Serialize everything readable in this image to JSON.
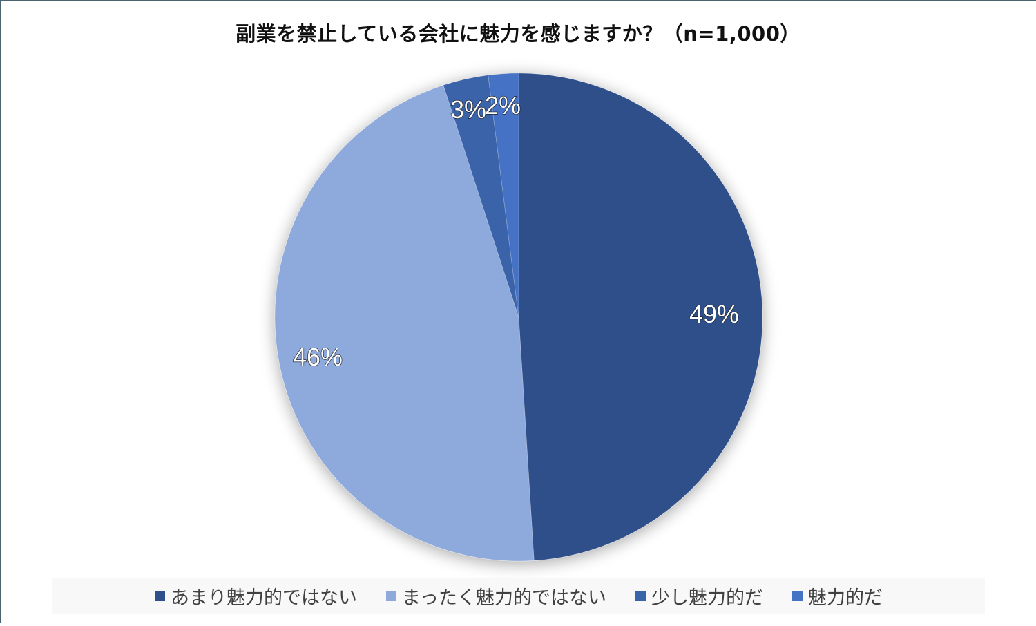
{
  "chart": {
    "title": "副業を禁止している会社に魅力を感じますか？（n=1,000）"
  },
  "legend": {
    "items": [
      {
        "label": "あまり魅力的ではない",
        "color": "#2e4f8a"
      },
      {
        "label": "まったく魅力的ではない",
        "color": "#8eaadc"
      },
      {
        "label": "少し魅力的だ",
        "color": "#3a64aa"
      },
      {
        "label": "魅力的だ",
        "color": "#4472c4"
      }
    ]
  },
  "labels": [
    "49%",
    "46%",
    "3%",
    "2%"
  ],
  "chart_data": {
    "type": "pie",
    "title": "副業を禁止している会社に魅力を感じますか？（n=1,000）",
    "categories": [
      "あまり魅力的ではない",
      "まったく魅力的ではない",
      "少し魅力的だ",
      "魅力的だ"
    ],
    "values": [
      49,
      46,
      3,
      2
    ],
    "unit": "%",
    "colors": [
      "#2e4f8a",
      "#8eaadc",
      "#3a64aa",
      "#4472c4"
    ],
    "data_labels": [
      "49%",
      "46%",
      "3%",
      "2%"
    ],
    "start_angle": "12 o'clock",
    "direction": "clockwise",
    "legend_position": "bottom",
    "sample_size": 1000
  }
}
